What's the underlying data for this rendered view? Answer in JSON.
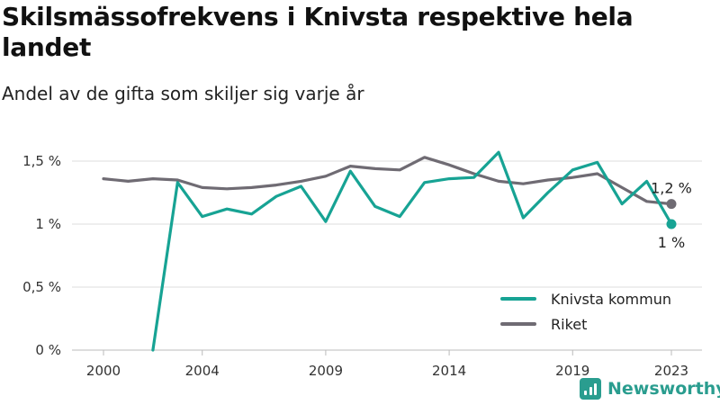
{
  "colors": {
    "knivsta": "#17a394",
    "riket": "#6f6b73",
    "grid": "#dddddd",
    "brand": "#2a9d8f"
  },
  "brand": {
    "name": "Newsworthy",
    "icon": "bar-chart-icon"
  },
  "chart_data": {
    "type": "line",
    "title": "Skilsmässofrekvens i Knivsta respektive hela landet",
    "subtitle": "Andel av de gifta som skiljer sig varje år",
    "xlabel": "",
    "ylabel": "",
    "xlim": [
      2000,
      2023
    ],
    "ylim": [
      0,
      1.5
    ],
    "x_ticks": [
      2000,
      2004,
      2009,
      2014,
      2019,
      2023
    ],
    "y_ticks": [
      {
        "value": 0,
        "label": "0 %"
      },
      {
        "value": 0.5,
        "label": "0,5 %"
      },
      {
        "value": 1,
        "label": "1 %"
      },
      {
        "value": 1.5,
        "label": "1,5 %"
      }
    ],
    "grid": true,
    "legend_position": "bottom-right",
    "x": [
      2000,
      2001,
      2002,
      2003,
      2004,
      2005,
      2006,
      2007,
      2008,
      2009,
      2010,
      2011,
      2012,
      2013,
      2014,
      2015,
      2016,
      2017,
      2018,
      2019,
      2020,
      2021,
      2022,
      2023
    ],
    "series": [
      {
        "name": "Knivsta kommun",
        "color": "#17a394",
        "values": [
          null,
          null,
          0.0,
          1.33,
          1.06,
          1.12,
          1.08,
          1.22,
          1.3,
          1.02,
          1.42,
          1.14,
          1.06,
          1.33,
          1.36,
          1.37,
          1.57,
          1.05,
          1.25,
          1.43,
          1.49,
          1.16,
          1.34,
          1.0
        ],
        "end_label": "1 %"
      },
      {
        "name": "Riket",
        "color": "#6f6b73",
        "values": [
          1.36,
          1.34,
          1.36,
          1.35,
          1.29,
          1.28,
          1.29,
          1.31,
          1.34,
          1.38,
          1.46,
          1.44,
          1.43,
          1.53,
          1.47,
          1.4,
          1.34,
          1.32,
          1.35,
          1.37,
          1.4,
          1.29,
          1.18,
          1.16
        ],
        "end_label": "1,2 %"
      }
    ]
  }
}
